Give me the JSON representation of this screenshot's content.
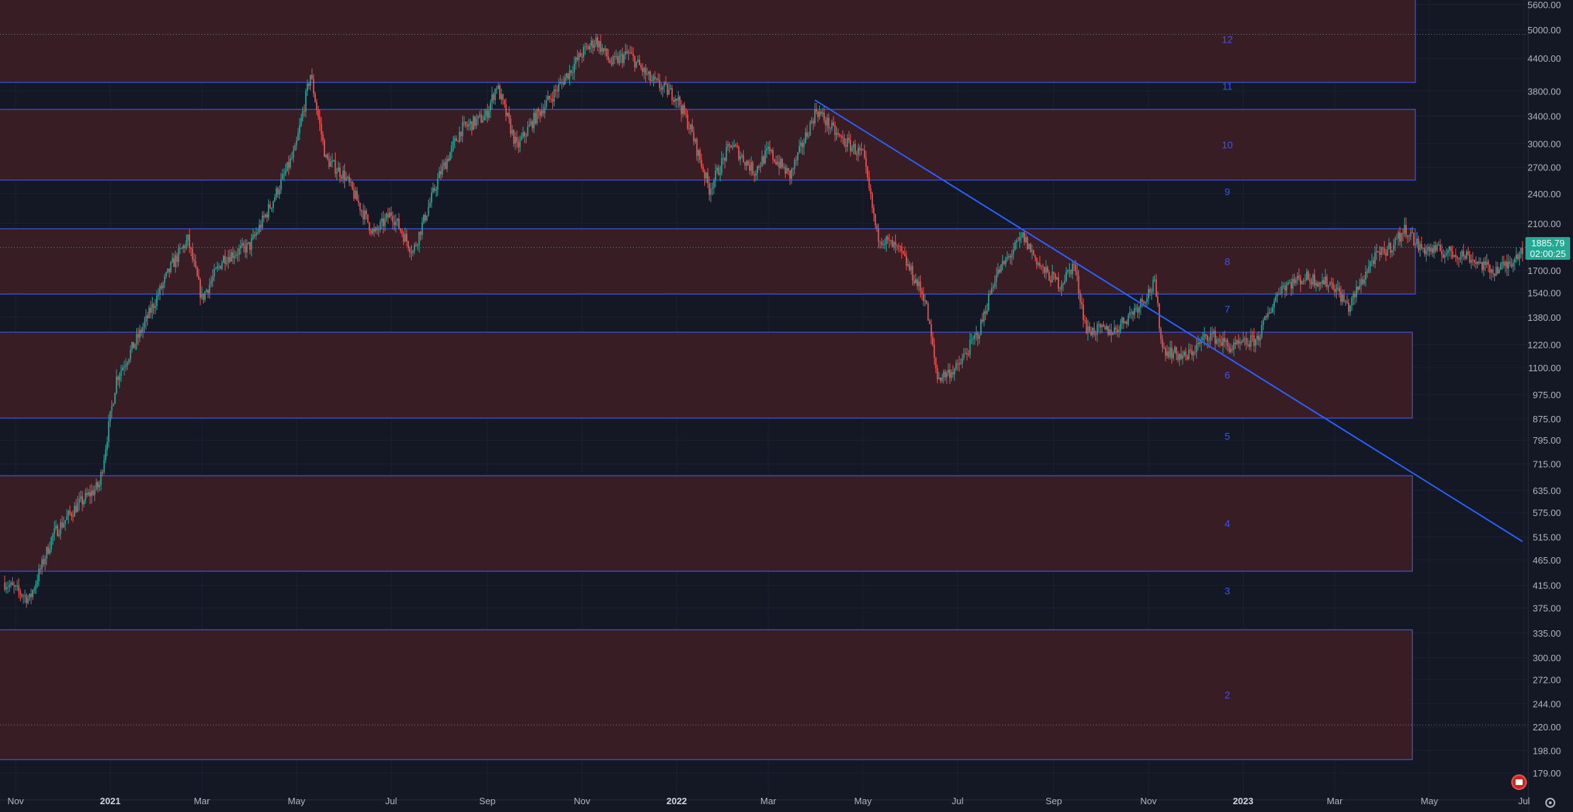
{
  "chart_data": {
    "type": "candlestick",
    "scale": "log",
    "y_ticks": [
      "5600.00",
      "5000.00",
      "4400.00",
      "3800.00",
      "3400.00",
      "3000.00",
      "2700.00",
      "2400.00",
      "2100.00",
      "1700.00",
      "1540.00",
      "1380.00",
      "1220.00",
      "1100.00",
      "975.00",
      "875.00",
      "795.00",
      "715.00",
      "635.00",
      "575.00",
      "515.00",
      "465.00",
      "415.00",
      "375.00",
      "335.00",
      "300.00",
      "272.00",
      "244.00",
      "220.00",
      "198.00",
      "179.00"
    ],
    "y_tick_values": [
      5600,
      5000,
      4400,
      3800,
      3400,
      3000,
      2700,
      2400,
      2100,
      1700,
      1540,
      1380,
      1220,
      1100,
      975,
      875,
      795,
      715,
      635,
      575,
      515,
      465,
      415,
      375,
      335,
      300,
      272,
      244,
      220,
      198,
      179
    ],
    "ylim": [
      165,
      6000
    ],
    "x_ticks": [
      {
        "label": "Nov",
        "date": "2020-11-01",
        "year": false
      },
      {
        "label": "2021",
        "date": "2021-01-01",
        "year": true
      },
      {
        "label": "Mar",
        "date": "2021-03-01",
        "year": false
      },
      {
        "label": "May",
        "date": "2021-05-01",
        "year": false
      },
      {
        "label": "Jul",
        "date": "2021-07-01",
        "year": false
      },
      {
        "label": "Sep",
        "date": "2021-09-01",
        "year": false
      },
      {
        "label": "Nov",
        "date": "2021-11-01",
        "year": false
      },
      {
        "label": "2022",
        "date": "2022-01-01",
        "year": true
      },
      {
        "label": "Mar",
        "date": "2022-03-01",
        "year": false
      },
      {
        "label": "May",
        "date": "2022-05-01",
        "year": false
      },
      {
        "label": "Jul",
        "date": "2022-07-01",
        "year": false
      },
      {
        "label": "Sep",
        "date": "2022-09-01",
        "year": false
      },
      {
        "label": "Nov",
        "date": "2022-11-01",
        "year": false
      },
      {
        "label": "2023",
        "date": "2023-01-01",
        "year": true
      },
      {
        "label": "Mar",
        "date": "2023-03-01",
        "year": false
      },
      {
        "label": "May",
        "date": "2023-05-01",
        "year": false
      },
      {
        "label": "Jul",
        "date": "2023-07-01",
        "year": false
      }
    ],
    "xlim": [
      "2020-10-25",
      "2023-07-01"
    ],
    "zones": [
      {
        "label": "12",
        "top": 5800,
        "bottom": 3950,
        "end": "2023-04-22"
      },
      {
        "label": "10",
        "top": 3500,
        "bottom": 2550,
        "end": "2023-04-22"
      },
      {
        "label": "8",
        "top": 2050,
        "bottom": 1530,
        "end": "2023-04-22"
      },
      {
        "label": "6",
        "top": 1290,
        "bottom": 878,
        "end": "2023-04-20"
      },
      {
        "label": "4",
        "top": 678,
        "bottom": 442,
        "end": "2023-04-20"
      },
      {
        "label": "2",
        "top": 340,
        "bottom": 190,
        "end": "2023-04-20"
      }
    ],
    "gap_labels": [
      {
        "label": "11",
        "value": 3880
      },
      {
        "label": "9",
        "value": 2420
      },
      {
        "label": "7",
        "value": 1430
      },
      {
        "label": "5",
        "value": 810
      },
      {
        "label": "3",
        "value": 405
      }
    ],
    "trendline": {
      "start": {
        "date": "2022-03-31",
        "value": 3650
      },
      "end": {
        "date": "2023-06-30",
        "value": 505
      }
    },
    "dotted_levels": [
      4900,
      1885.79,
      222
    ],
    "close_path": [
      [
        "2020-10-25",
        420
      ],
      [
        "2020-11-10",
        390
      ],
      [
        "2020-11-25",
        520
      ],
      [
        "2020-12-10",
        590
      ],
      [
        "2020-12-25",
        650
      ],
      [
        "2021-01-05",
        1050
      ],
      [
        "2021-01-20",
        1280
      ],
      [
        "2021-02-10",
        1750
      ],
      [
        "2021-02-20",
        1950
      ],
      [
        "2021-03-01",
        1500
      ],
      [
        "2021-03-15",
        1800
      ],
      [
        "2021-04-01",
        1900
      ],
      [
        "2021-04-15",
        2300
      ],
      [
        "2021-04-30",
        2900
      ],
      [
        "2021-05-10",
        4100
      ],
      [
        "2021-05-20",
        2800
      ],
      [
        "2021-06-01",
        2600
      ],
      [
        "2021-06-20",
        2000
      ],
      [
        "2021-07-01",
        2200
      ],
      [
        "2021-07-15",
        1850
      ],
      [
        "2021-08-01",
        2600
      ],
      [
        "2021-08-15",
        3200
      ],
      [
        "2021-08-31",
        3400
      ],
      [
        "2021-09-07",
        3900
      ],
      [
        "2021-09-20",
        2950
      ],
      [
        "2021-10-01",
        3350
      ],
      [
        "2021-10-15",
        3800
      ],
      [
        "2021-11-01",
        4500
      ],
      [
        "2021-11-10",
        4780
      ],
      [
        "2021-11-20",
        4300
      ],
      [
        "2021-12-01",
        4500
      ],
      [
        "2021-12-15",
        4000
      ],
      [
        "2022-01-01",
        3700
      ],
      [
        "2022-01-10",
        3200
      ],
      [
        "2022-01-22",
        2450
      ],
      [
        "2022-02-05",
        3000
      ],
      [
        "2022-02-20",
        2650
      ],
      [
        "2022-03-01",
        2900
      ],
      [
        "2022-03-15",
        2600
      ],
      [
        "2022-04-01",
        3500
      ],
      [
        "2022-04-15",
        3100
      ],
      [
        "2022-05-01",
        2850
      ],
      [
        "2022-05-10",
        2000
      ],
      [
        "2022-05-25",
        1850
      ],
      [
        "2022-06-10",
        1500
      ],
      [
        "2022-06-18",
        1050
      ],
      [
        "2022-07-01",
        1100
      ],
      [
        "2022-07-15",
        1300
      ],
      [
        "2022-07-25",
        1650
      ],
      [
        "2022-08-12",
        1980
      ],
      [
        "2022-08-25",
        1700
      ],
      [
        "2022-09-05",
        1600
      ],
      [
        "2022-09-14",
        1750
      ],
      [
        "2022-09-22",
        1300
      ],
      [
        "2022-10-10",
        1300
      ],
      [
        "2022-10-25",
        1450
      ],
      [
        "2022-11-05",
        1600
      ],
      [
        "2022-11-10",
        1200
      ],
      [
        "2022-11-25",
        1150
      ],
      [
        "2022-12-10",
        1280
      ],
      [
        "2022-12-25",
        1200
      ],
      [
        "2023-01-10",
        1250
      ],
      [
        "2023-01-25",
        1580
      ],
      [
        "2023-02-10",
        1650
      ],
      [
        "2023-02-28",
        1600
      ],
      [
        "2023-03-10",
        1440
      ],
      [
        "2023-03-25",
        1780
      ],
      [
        "2023-04-05",
        1880
      ],
      [
        "2023-04-16",
        2050
      ],
      [
        "2023-04-25",
        1880
      ],
      [
        "2023-05-10",
        1850
      ],
      [
        "2023-05-25",
        1820
      ],
      [
        "2023-06-10",
        1700
      ],
      [
        "2023-06-20",
        1740
      ],
      [
        "2023-06-30",
        1885
      ]
    ],
    "last_price": "1885.79",
    "countdown": "02:00:25"
  },
  "colors": {
    "background": "#141824",
    "zone_fill": "#3a1d26",
    "zone_border": "#3f55e0",
    "up": "#26a69a",
    "down": "#ef5350",
    "trendline": "#2962ff",
    "axis_text": "#b2b5be",
    "price_tag": "#22ab94"
  },
  "icons": {
    "flag": "flag-icon",
    "settings": "settings-icon"
  }
}
